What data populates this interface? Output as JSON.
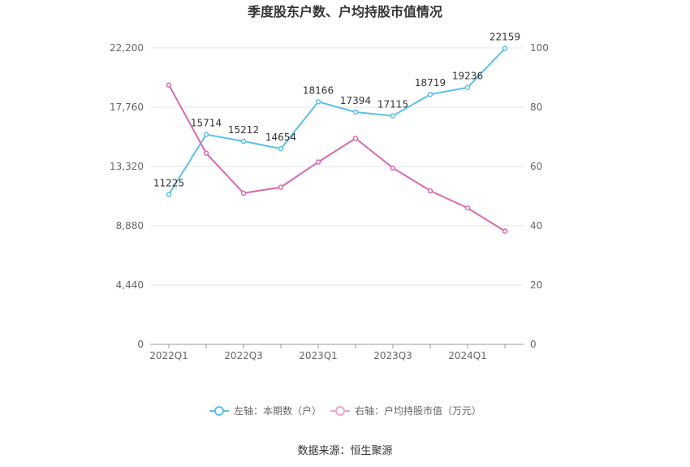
{
  "chart_data": {
    "type": "line",
    "title": "季度股东户数、户均持股市值情况",
    "categories": [
      "2022Q1",
      "2022Q2",
      "2022Q3",
      "2022Q4",
      "2023Q1",
      "2023Q2",
      "2023Q3",
      "2023Q4",
      "2024Q1",
      "2024Q2"
    ],
    "x_tick_labels": [
      "2022Q1",
      "",
      "2022Q3",
      "",
      "2023Q1",
      "",
      "2023Q3",
      "",
      "2024Q1",
      ""
    ],
    "series": [
      {
        "name": "左轴：本期数（户）",
        "axis": "left",
        "color": "#5bc0eb",
        "values": [
          11225,
          15714,
          15212,
          14654,
          18166,
          17394,
          17115,
          18719,
          19236,
          22159
        ],
        "labels": [
          "11225",
          "15714",
          "15212",
          "14654",
          "18166",
          "17394",
          "17115",
          "18719",
          "19236",
          "22159"
        ]
      },
      {
        "name": "右轴：户均持股市值（万元）",
        "axis": "right",
        "color": "#d96bb0",
        "values": [
          87.5,
          64.5,
          51.0,
          53.0,
          61.5,
          69.5,
          59.5,
          51.8,
          46.0,
          38.2
        ]
      }
    ],
    "y_left": {
      "ylim": [
        0,
        22200
      ],
      "ticks": [
        0,
        4440,
        8880,
        13320,
        17760,
        22200
      ],
      "tick_labels": [
        "0",
        "4,440",
        "8,880",
        "13,320",
        "17,760",
        "22,200"
      ]
    },
    "y_right": {
      "ylim": [
        0,
        100
      ],
      "ticks": [
        0,
        20,
        40,
        60,
        80,
        100
      ],
      "tick_labels": [
        "0",
        "20",
        "40",
        "60",
        "80",
        "100"
      ]
    },
    "grid": true,
    "legend_position": "bottom"
  },
  "source_text": "数据来源：恒生聚源"
}
